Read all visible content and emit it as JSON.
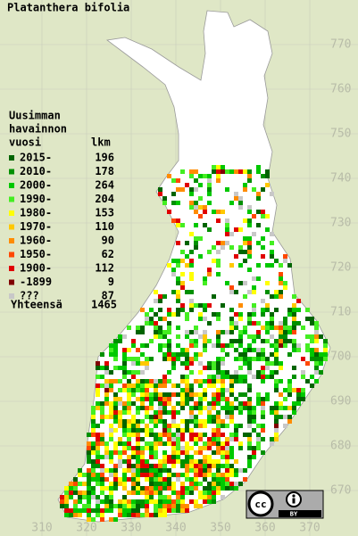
{
  "map": {
    "title": "Platanthera bifolia",
    "legend": {
      "heading": [
        "Uusimman",
        "havainnon",
        "vuosi"
      ],
      "count_heading": "lkm",
      "items": [
        {
          "label": "2015-",
          "count": 196,
          "color": "#006400"
        },
        {
          "label": "2010-",
          "count": 178,
          "color": "#009000"
        },
        {
          "label": "2000-",
          "count": 264,
          "color": "#00c800"
        },
        {
          "label": "1990-",
          "count": 204,
          "color": "#44ee22"
        },
        {
          "label": "1980-",
          "count": 153,
          "color": "#ffff00"
        },
        {
          "label": "1970-",
          "count": 110,
          "color": "#ffc800"
        },
        {
          "label": "1960-",
          "count": 90,
          "color": "#ff8c00"
        },
        {
          "label": "1950-",
          "count": 62,
          "color": "#ff4800"
        },
        {
          "label": "1900-",
          "count": 112,
          "color": "#e00000"
        },
        {
          "label": "-1899",
          "count": 9,
          "color": "#800000"
        },
        {
          "label": "???",
          "count": 87,
          "color": "#c8c8c8"
        }
      ],
      "total_label": "Yhteensä",
      "total": 1465
    },
    "x_labels": [
      310,
      320,
      330,
      340,
      350,
      360,
      370
    ],
    "y_labels": [
      670,
      680,
      690,
      700,
      710,
      720,
      730,
      740,
      750,
      760,
      770
    ],
    "license": "BY"
  }
}
